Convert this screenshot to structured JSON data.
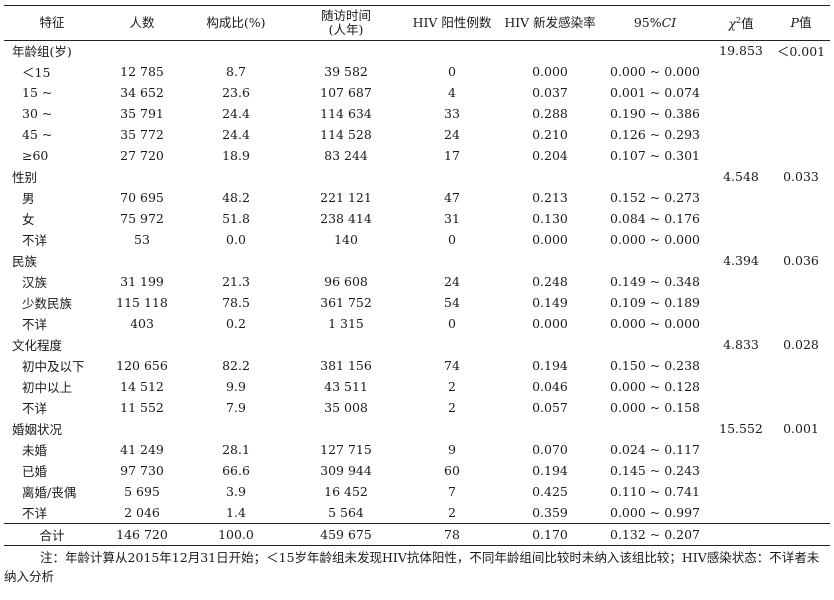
{
  "headers": {
    "feature": "特征",
    "count": "人数",
    "proportion": "构成比(%)",
    "followup_line1": "随访时间",
    "followup_line2": "(人年)",
    "positive": "HIV 阳性例数",
    "incidence": "HIV 新发感染率",
    "ci_prefix": "95%",
    "ci_italic": "CI",
    "chi_symbol": "χ",
    "chi_sup": "2",
    "chi_suffix": "值",
    "p_italic": "P",
    "p_suffix": "值"
  },
  "groups": [
    {
      "label": "年龄组(岁)",
      "chi2": "19.853",
      "p": "＜0.001",
      "rows": [
        {
          "label": "＜15",
          "count": "12 785",
          "prop": "8.7",
          "py": "39 582",
          "pos": "0",
          "rate": "0.000",
          "ci": "0.000 ~ 0.000"
        },
        {
          "label": "15 ~",
          "count": "34 652",
          "prop": "23.6",
          "py": "107 687",
          "pos": "4",
          "rate": "0.037",
          "ci": "0.001 ~ 0.074"
        },
        {
          "label": "30 ~",
          "count": "35 791",
          "prop": "24.4",
          "py": "114 634",
          "pos": "33",
          "rate": "0.288",
          "ci": "0.190 ~ 0.386"
        },
        {
          "label": "45 ~",
          "count": "35 772",
          "prop": "24.4",
          "py": "114 528",
          "pos": "24",
          "rate": "0.210",
          "ci": "0.126 ~ 0.293"
        },
        {
          "label": "≥60",
          "count": "27 720",
          "prop": "18.9",
          "py": "83 244",
          "pos": "17",
          "rate": "0.204",
          "ci": "0.107 ~ 0.301"
        }
      ]
    },
    {
      "label": "性别",
      "chi2": "4.548",
      "p": "0.033",
      "rows": [
        {
          "label": "男",
          "count": "70 695",
          "prop": "48.2",
          "py": "221 121",
          "pos": "47",
          "rate": "0.213",
          "ci": "0.152 ~ 0.273"
        },
        {
          "label": "女",
          "count": "75 972",
          "prop": "51.8",
          "py": "238 414",
          "pos": "31",
          "rate": "0.130",
          "ci": "0.084 ~ 0.176"
        },
        {
          "label": "不详",
          "count": "53",
          "prop": "0.0",
          "py": "140",
          "pos": "0",
          "rate": "0.000",
          "ci": "0.000 ~ 0.000"
        }
      ]
    },
    {
      "label": "民族",
      "chi2": "4.394",
      "p": "0.036",
      "rows": [
        {
          "label": "汉族",
          "count": "31 199",
          "prop": "21.3",
          "py": "96 608",
          "pos": "24",
          "rate": "0.248",
          "ci": "0.149 ~ 0.348"
        },
        {
          "label": "少数民族",
          "count": "115 118",
          "prop": "78.5",
          "py": "361 752",
          "pos": "54",
          "rate": "0.149",
          "ci": "0.109 ~ 0.189"
        },
        {
          "label": "不详",
          "count": "403",
          "prop": "0.2",
          "py": "1 315",
          "pos": "0",
          "rate": "0.000",
          "ci": "0.000 ~ 0.000"
        }
      ]
    },
    {
      "label": "文化程度",
      "chi2": "4.833",
      "p": "0.028",
      "rows": [
        {
          "label": "初中及以下",
          "count": "120 656",
          "prop": "82.2",
          "py": "381 156",
          "pos": "74",
          "rate": "0.194",
          "ci": "0.150 ~ 0.238"
        },
        {
          "label": "初中以上",
          "count": "14 512",
          "prop": "9.9",
          "py": "43 511",
          "pos": "2",
          "rate": "0.046",
          "ci": "0.000 ~ 0.128"
        },
        {
          "label": "不详",
          "count": "11 552",
          "prop": "7.9",
          "py": "35 008",
          "pos": "2",
          "rate": "0.057",
          "ci": "0.000 ~ 0.158"
        }
      ]
    },
    {
      "label": "婚姻状况",
      "chi2": "15.552",
      "p": "0.001",
      "rows": [
        {
          "label": "未婚",
          "count": "41 249",
          "prop": "28.1",
          "py": "127 715",
          "pos": "9",
          "rate": "0.070",
          "ci": "0.024 ~ 0.117"
        },
        {
          "label": "已婚",
          "count": "97 730",
          "prop": "66.6",
          "py": "309 944",
          "pos": "60",
          "rate": "0.194",
          "ci": "0.145 ~ 0.243"
        },
        {
          "label": "离婚/丧偶",
          "count": "5 695",
          "prop": "3.9",
          "py": "16 452",
          "pos": "7",
          "rate": "0.425",
          "ci": "0.110 ~ 0.741"
        },
        {
          "label": "不详",
          "count": "2 046",
          "prop": "1.4",
          "py": "5 564",
          "pos": "2",
          "rate": "0.359",
          "ci": "0.000 ~ 0.997"
        }
      ]
    }
  ],
  "total": {
    "label": "合计",
    "count": "146 720",
    "prop": "100.0",
    "py": "459 675",
    "pos": "78",
    "rate": "0.170",
    "ci": "0.132 ~ 0.207"
  },
  "note": "注：年龄计算从2015年12月31日开始；＜15岁年龄组未发现HIV抗体阳性，不同年龄组间比较时未纳入该组比较；HIV感染状态：不详者未纳入分析"
}
